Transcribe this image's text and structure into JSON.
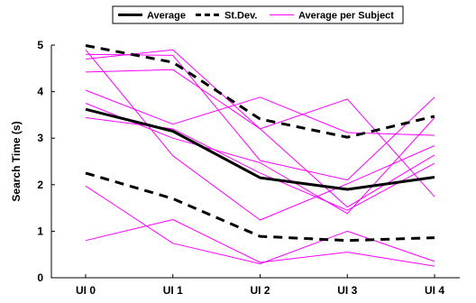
{
  "chart_data": {
    "type": "line",
    "title": "",
    "xlabel": "",
    "ylabel": "Search Time (s)",
    "categories": [
      "UI 0",
      "UI 1",
      "UI 2",
      "UI 3",
      "UI 4"
    ],
    "ylim": [
      0,
      5
    ],
    "yticks": [
      0,
      1,
      2,
      3,
      4,
      5
    ],
    "grid": false,
    "legend_position": "top",
    "series": [
      {
        "name": "Average",
        "role": "average",
        "color": "#000000",
        "values": [
          3.62,
          3.15,
          2.15,
          1.9,
          2.16
        ]
      },
      {
        "name": "St.Dev.",
        "role": "std_upper",
        "color": "#000000",
        "values": [
          4.99,
          4.63,
          3.41,
          3.02,
          3.47
        ]
      },
      {
        "name": "St.Dev.",
        "role": "std_lower",
        "color": "#000000",
        "values": [
          2.25,
          1.7,
          0.89,
          0.8,
          0.86
        ]
      },
      {
        "name": "Average per Subject",
        "role": "subject",
        "color": "#ff00ff",
        "values": [
          4.8,
          4.78,
          2.52,
          2.1,
          3.88
        ]
      },
      {
        "name": "Average per Subject",
        "role": "subject",
        "color": "#ff00ff",
        "values": [
          4.7,
          4.9,
          3.2,
          3.84,
          1.74
        ]
      },
      {
        "name": "Average per Subject",
        "role": "subject",
        "color": "#ff00ff",
        "values": [
          4.42,
          4.47,
          3.2,
          1.52,
          2.64
        ]
      },
      {
        "name": "Average per Subject",
        "role": "subject",
        "color": "#ff00ff",
        "values": [
          4.03,
          3.3,
          3.88,
          3.12,
          3.06
        ]
      },
      {
        "name": "Average per Subject",
        "role": "subject",
        "color": "#ff00ff",
        "values": [
          3.75,
          3.0,
          2.47,
          1.38,
          3.44
        ]
      },
      {
        "name": "Average per Subject",
        "role": "subject",
        "color": "#ff00ff",
        "values": [
          3.44,
          3.2,
          2.25,
          1.45,
          2.46
        ]
      },
      {
        "name": "Average per Subject",
        "role": "subject",
        "color": "#ff00ff",
        "values": [
          4.9,
          2.62,
          1.24,
          2.02,
          2.84
        ]
      },
      {
        "name": "Average per Subject",
        "role": "subject",
        "color": "#ff00ff",
        "values": [
          1.97,
          0.74,
          0.3,
          1.0,
          0.35
        ]
      },
      {
        "name": "Average per Subject",
        "role": "subject",
        "color": "#ff00ff",
        "values": [
          0.8,
          1.25,
          0.33,
          0.55,
          0.25
        ]
      }
    ],
    "legend": [
      {
        "label": "Average",
        "style": "solid",
        "color": "#000000"
      },
      {
        "label": "St.Dev.",
        "style": "dashed",
        "color": "#000000"
      },
      {
        "label": "Average per Subject",
        "style": "thin",
        "color": "#ff00ff"
      }
    ]
  }
}
